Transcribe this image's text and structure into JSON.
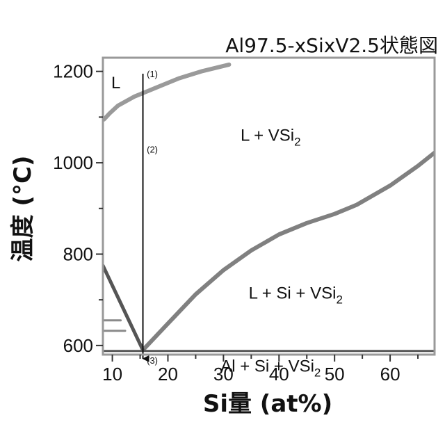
{
  "chart_data": {
    "type": "line",
    "title": "Al97.5-xSixV2.5状態図",
    "xlabel": "Si量 (at%)",
    "ylabel": "温度 (°C)",
    "xlim": [
      8.3,
      68
    ],
    "ylim": [
      580,
      1230
    ],
    "x_ticks": [
      10,
      20,
      30,
      40,
      50,
      60
    ],
    "x_minor_ticks": [
      15,
      25,
      35,
      45,
      55,
      65
    ],
    "y_ticks": [
      600,
      800,
      1000,
      1200
    ],
    "y_minor_ticks": [
      700,
      900,
      1100
    ],
    "grid": false,
    "series": [
      {
        "color": "#9a9a9a",
        "x": [
          8.5,
          9.5,
          11,
          14,
          18,
          22,
          26,
          31
        ],
        "y": [
          1095,
          1108,
          1125,
          1145,
          1165,
          1185,
          1200,
          1215
        ]
      },
      {
        "color": "#808080",
        "x": [
          15.5,
          20,
          25,
          30,
          35,
          40,
          45,
          50,
          54,
          60,
          65,
          68
        ],
        "y": [
          590,
          648,
          712,
          765,
          808,
          843,
          868,
          888,
          908,
          950,
          993,
          1022
        ]
      },
      {
        "color": "#555555",
        "x": [
          8.3,
          15.5
        ],
        "y": [
          775,
          590
        ]
      },
      {
        "color": "#555555",
        "x": [
          8.3,
          68
        ],
        "y": [
          588,
          588
        ]
      },
      {
        "color": "#8a8a8a",
        "x": [
          8.3,
          11.5
        ],
        "y": [
          655,
          655
        ]
      },
      {
        "color": "#8a8a8a",
        "x": [
          8.3,
          12.3
        ],
        "y": [
          632,
          632
        ]
      }
    ],
    "arrow": {
      "x": 15.5,
      "y_start": 1195,
      "y_end": 568,
      "color": "#111111"
    },
    "annotations": [
      {
        "id": "marker-1",
        "text": "(1)",
        "x": 16.2,
        "y": 1195
      },
      {
        "id": "marker-2",
        "text": "(2)",
        "x": 16.2,
        "y": 1030
      },
      {
        "id": "marker-3",
        "text": "(3)",
        "x": 16.2,
        "y": 568
      },
      {
        "id": "region-l",
        "text": "L",
        "x": 9.8,
        "y": 1175
      },
      {
        "id": "region-l-vsi2",
        "text": "L + VSi",
        "sub": "2",
        "x": 38.5,
        "y": 1060
      },
      {
        "id": "region-l-si-vsi2",
        "text": "L + Si + VSi",
        "sub": "2",
        "x": 43,
        "y": 715
      },
      {
        "id": "region-al-si-vsi2",
        "text": "Al + Si + VSi",
        "sub": "2",
        "x": 38.5,
        "y": 555
      }
    ]
  }
}
